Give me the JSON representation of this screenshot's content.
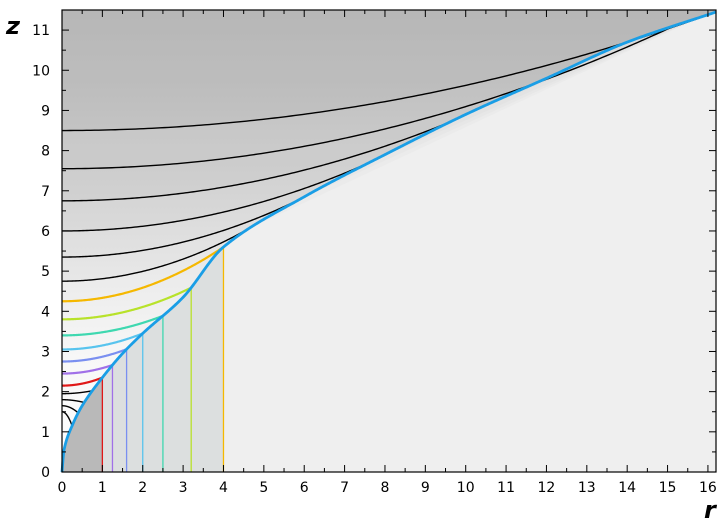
{
  "chart_data": {
    "type": "line",
    "title": "",
    "xlabel": "r",
    "ylabel": "z",
    "xlim": [
      0,
      16.2
    ],
    "ylim": [
      0,
      11.5
    ],
    "x_ticks": [
      "0",
      "1",
      "2",
      "3",
      "4",
      "5",
      "6",
      "7",
      "8",
      "9",
      "10",
      "11",
      "12",
      "13",
      "14",
      "15",
      "16"
    ],
    "y_ticks": [
      "0",
      "1",
      "2",
      "3",
      "4",
      "5",
      "6",
      "7",
      "8",
      "9",
      "10",
      "11"
    ],
    "grid": false,
    "legend": "none",
    "colors": {
      "envelope": "#1a9ee6",
      "upper_region": "#c6c6c6",
      "lower_region": "#efefef",
      "inner_region": "#b9b9b9"
    },
    "envelope": {
      "name": "",
      "color": "#1a9ee6",
      "points": [
        [
          0,
          0
        ],
        [
          0.05,
          0.55
        ],
        [
          0.25,
          1.15
        ],
        [
          0.5,
          1.65
        ],
        [
          1,
          2.35
        ],
        [
          1.5,
          2.95
        ],
        [
          2,
          3.45
        ],
        [
          3,
          4.35
        ],
        [
          4,
          5.6
        ],
        [
          6,
          6.85
        ],
        [
          8,
          7.9
        ],
        [
          10,
          8.9
        ],
        [
          12,
          9.8
        ],
        [
          14,
          10.7
        ],
        [
          16.2,
          11.45
        ]
      ]
    },
    "series": [
      {
        "z0": 8.5,
        "r_end": 16.2,
        "color": "#000000"
      },
      {
        "z0": 7.55,
        "r_end": 15.2,
        "color": "#000000"
      },
      {
        "z0": 6.75,
        "r_end": 9.6,
        "color": "#000000"
      },
      {
        "z0": 6.0,
        "r_end": 7.6,
        "color": "#000000"
      },
      {
        "z0": 5.35,
        "r_end": 5.9,
        "color": "#000000"
      },
      {
        "z0": 4.75,
        "r_end": 4.6,
        "color": "#000000"
      },
      {
        "z0": 4.25,
        "r_end": 4.0,
        "color": "#f5b800"
      },
      {
        "z0": 3.8,
        "r_end": 3.2,
        "color": "#b8e22a"
      },
      {
        "z0": 3.4,
        "r_end": 2.5,
        "color": "#3fd8b0"
      },
      {
        "z0": 3.05,
        "r_end": 2.0,
        "color": "#58c4ee"
      },
      {
        "z0": 2.75,
        "r_end": 1.6,
        "color": "#7a8ff0"
      },
      {
        "z0": 2.45,
        "r_end": 1.25,
        "color": "#a070e8"
      },
      {
        "z0": 2.15,
        "r_end": 1.0,
        "color": "#e01818"
      },
      {
        "z0": 1.95,
        "r_end": 0.75,
        "color": "#000000"
      },
      {
        "z0": 1.8,
        "r_end": 0.55,
        "color": "#000000"
      },
      {
        "z0": 1.65,
        "r_end": 0.4,
        "color": "#000000"
      },
      {
        "z0": 1.5,
        "r_end": 0.25,
        "color": "#000000"
      }
    ],
    "vertical_lines": [
      {
        "r": 1.0,
        "color": "#e01818"
      },
      {
        "r": 1.25,
        "color": "#a070e8"
      },
      {
        "r": 1.6,
        "color": "#7a8ff0"
      },
      {
        "r": 2.0,
        "color": "#58c4ee"
      },
      {
        "r": 2.5,
        "color": "#3fd8b0"
      },
      {
        "r": 3.2,
        "color": "#b8e22a"
      },
      {
        "r": 4.0,
        "color": "#f5b800"
      }
    ]
  }
}
